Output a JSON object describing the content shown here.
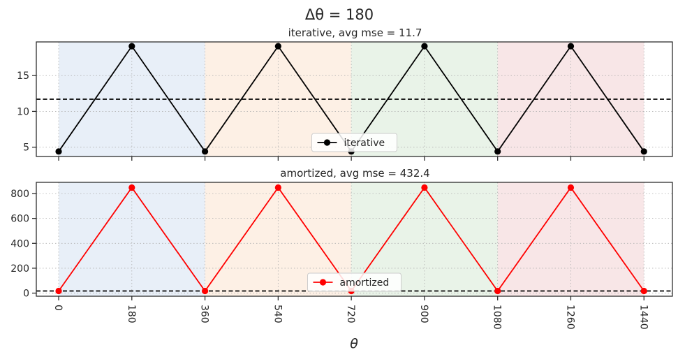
{
  "figure": {
    "suptitle": "Δθ = 180",
    "xlabel": "θ"
  },
  "chart_data": [
    {
      "type": "line",
      "title": "iterative, avg mse = 11.7",
      "x": [
        0,
        180,
        360,
        540,
        720,
        900,
        1080,
        1260,
        1440
      ],
      "xticks": [
        0,
        180,
        360,
        540,
        720,
        900,
        1080,
        1260,
        1440
      ],
      "xticklabels": [
        "0",
        "180",
        "360",
        "540",
        "720",
        "900",
        "1080",
        "1260",
        "1440"
      ],
      "xlim": [
        -55,
        1510
      ],
      "ylim": [
        3.7,
        19.7
      ],
      "yticks": [
        5,
        10,
        15
      ],
      "yticklabels": [
        "5",
        "10",
        "15"
      ],
      "series": [
        {
          "name": "iterative",
          "color": "#000000",
          "values": [
            4.4,
            19.1,
            4.4,
            19.1,
            4.4,
            19.1,
            4.4,
            19.1,
            4.4
          ]
        }
      ],
      "hline": {
        "y": 11.7,
        "color": "#000000",
        "style": "dashed"
      },
      "bands": [
        {
          "from": 0,
          "to": 360,
          "color": "#e8eff8"
        },
        {
          "from": 360,
          "to": 720,
          "color": "#fdf0e5"
        },
        {
          "from": 720,
          "to": 1080,
          "color": "#e9f3e8"
        },
        {
          "from": 1080,
          "to": 1440,
          "color": "#f8e6e7"
        }
      ],
      "grid": true,
      "legend_position": "bottom-center"
    },
    {
      "type": "line",
      "title": "amortized, avg mse = 432.4",
      "x": [
        0,
        180,
        360,
        540,
        720,
        900,
        1080,
        1260,
        1440
      ],
      "xticks": [
        0,
        180,
        360,
        540,
        720,
        900,
        1080,
        1260,
        1440
      ],
      "xticklabels": [
        "0",
        "180",
        "360",
        "540",
        "720",
        "900",
        "1080",
        "1260",
        "1440"
      ],
      "xlim": [
        -55,
        1510
      ],
      "ylim": [
        -25,
        890
      ],
      "yticks": [
        0,
        200,
        400,
        600,
        800
      ],
      "yticklabels": [
        "0",
        "200",
        "400",
        "600",
        "800"
      ],
      "series": [
        {
          "name": "amortized",
          "color": "#ff0000",
          "values": [
            17,
            848,
            17,
            848,
            17,
            848,
            17,
            848,
            17
          ]
        }
      ],
      "hline": {
        "y": 17,
        "color": "#000000",
        "style": "dashed"
      },
      "bands": [
        {
          "from": 0,
          "to": 360,
          "color": "#e8eff8"
        },
        {
          "from": 360,
          "to": 720,
          "color": "#fdf0e5"
        },
        {
          "from": 720,
          "to": 1080,
          "color": "#e9f3e8"
        },
        {
          "from": 1080,
          "to": 1440,
          "color": "#f8e6e7"
        }
      ],
      "grid": true,
      "legend_position": "bottom-center"
    }
  ]
}
